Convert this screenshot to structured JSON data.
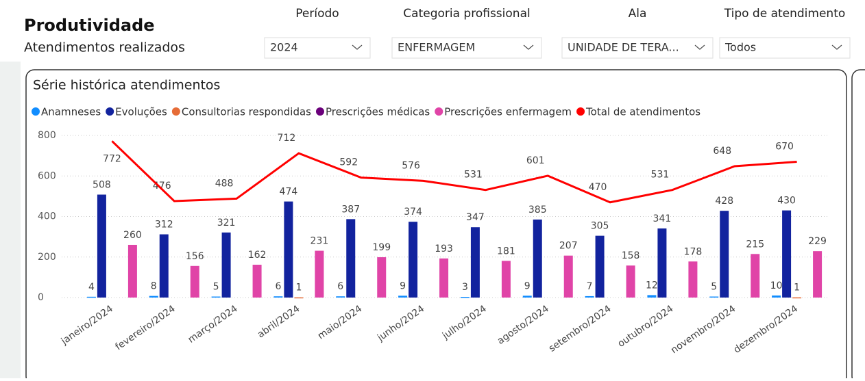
{
  "header": {
    "title": "Produtividade",
    "subtitle": "Atendimentos realizados"
  },
  "filters": [
    {
      "label": "Período",
      "value": "2024"
    },
    {
      "label": "Categoria profissional",
      "value": "ENFERMAGEM"
    },
    {
      "label": "Ala",
      "value": "UNIDADE DE TERA..."
    },
    {
      "label": "Tipo de atendimento",
      "value": "Todos"
    }
  ],
  "chart_data": {
    "type": "bar_line",
    "title": "Série histórica atendimentos",
    "categories": [
      "janeiro/2024",
      "fevereiro/2024",
      "março/2024",
      "abril/2024",
      "maio/2024",
      "junho/2024",
      "julho/2024",
      "agosto/2024",
      "setembro/2024",
      "outubro/2024",
      "novembro/2024",
      "dezembro/2024"
    ],
    "series": [
      {
        "name": "Anamneses",
        "color": "#118DFF",
        "values": [
          4,
          8,
          5,
          6,
          6,
          9,
          3,
          9,
          7,
          12,
          5,
          10
        ]
      },
      {
        "name": "Evoluções",
        "color": "#12239E",
        "values": [
          508,
          312,
          321,
          474,
          387,
          374,
          347,
          385,
          305,
          341,
          428,
          430
        ]
      },
      {
        "name": "Consultorias respondidas",
        "color": "#E66C37",
        "values": [
          null,
          null,
          null,
          1,
          null,
          null,
          null,
          null,
          null,
          null,
          null,
          1
        ]
      },
      {
        "name": "Prescrições médicas",
        "color": "#6B007B",
        "values": [
          null,
          null,
          null,
          null,
          null,
          null,
          null,
          null,
          null,
          null,
          null,
          null
        ]
      },
      {
        "name": "Prescrições enfermagem",
        "color": "#E044A7",
        "values": [
          260,
          156,
          162,
          231,
          199,
          193,
          181,
          207,
          158,
          178,
          215,
          229
        ]
      },
      {
        "name": "Total de atendimentos",
        "color": "#FF0000",
        "line": true,
        "values": [
          772,
          476,
          488,
          712,
          592,
          576,
          531,
          601,
          470,
          531,
          648,
          670
        ]
      }
    ],
    "ylim": [
      0,
      800
    ],
    "yticks": [
      0,
      200,
      400,
      600,
      800
    ],
    "grid": true
  }
}
